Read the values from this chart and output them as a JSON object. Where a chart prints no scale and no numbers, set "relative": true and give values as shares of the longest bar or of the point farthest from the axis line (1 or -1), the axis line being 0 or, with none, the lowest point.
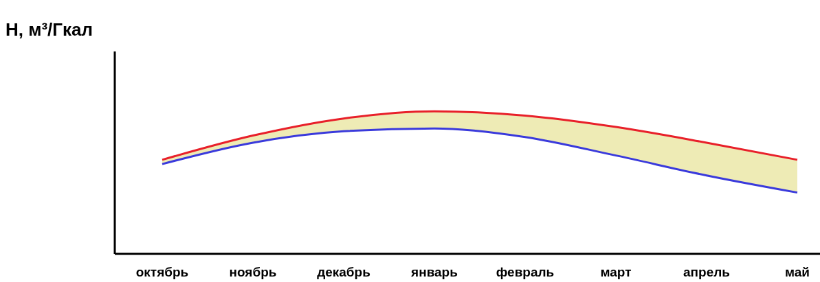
{
  "chart_data": {
    "type": "line",
    "ylabel": "H, м³/Гкал",
    "relative": true,
    "legend": false,
    "grid": false,
    "marker": "none",
    "categories": [
      "октябрь",
      "ноябрь",
      "декабрь",
      "январь",
      "февраль",
      "март",
      "апрель",
      "май"
    ],
    "series": [
      {
        "color": "#e8202a",
        "values": [
          0.66,
          0.83,
          0.95,
          1,
          0.97,
          0.89,
          0.78,
          0.66
        ],
        "lower": [
          0.63,
          0.78,
          0.86,
          0.88,
          0.82,
          0.69,
          0.55,
          0.43
        ],
        "upper": [
          0.66,
          0.83,
          0.95,
          1,
          0.97,
          0.89,
          0.78,
          0.66
        ]
      },
      {
        "color": "#3a3adc",
        "values": [
          0.63,
          0.78,
          0.86,
          0.88,
          0.82,
          0.69,
          0.55,
          0.43
        ]
      }
    ]
  }
}
